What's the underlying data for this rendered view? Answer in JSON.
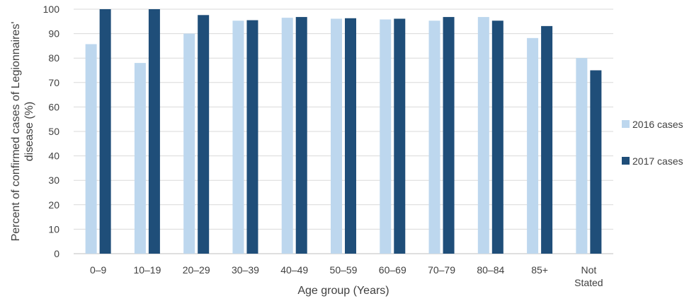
{
  "chart_data": {
    "type": "bar",
    "title": "",
    "xlabel": "Age group (Years)",
    "ylabel_lines": [
      "Percent of confirmed cases of Legionnaires'",
      "disease (%)"
    ],
    "ylim": [
      0,
      100
    ],
    "yticks": [
      0,
      10,
      20,
      30,
      40,
      50,
      60,
      70,
      80,
      90,
      100
    ],
    "grid": "horizontal",
    "legend_position": "right",
    "categories": [
      [
        "0–9"
      ],
      [
        "10–19"
      ],
      [
        "20–29"
      ],
      [
        "30–39"
      ],
      [
        "40–49"
      ],
      [
        "50–59"
      ],
      [
        "60–69"
      ],
      [
        "70–79"
      ],
      [
        "80–84"
      ],
      [
        "85+"
      ],
      [
        "Not",
        "Stated"
      ]
    ],
    "series": [
      {
        "name": "2016 cases",
        "color": "#bdd7ee",
        "values": [
          85.7,
          78,
          90,
          95.3,
          96.5,
          96.1,
          95.8,
          95.3,
          96.8,
          88.2,
          80
        ]
      },
      {
        "name": "2017 cases",
        "color": "#1f4e79",
        "values": [
          100,
          100,
          97.6,
          95.5,
          96.8,
          96.3,
          96.1,
          96.8,
          95.3,
          93.1,
          75
        ]
      }
    ]
  }
}
